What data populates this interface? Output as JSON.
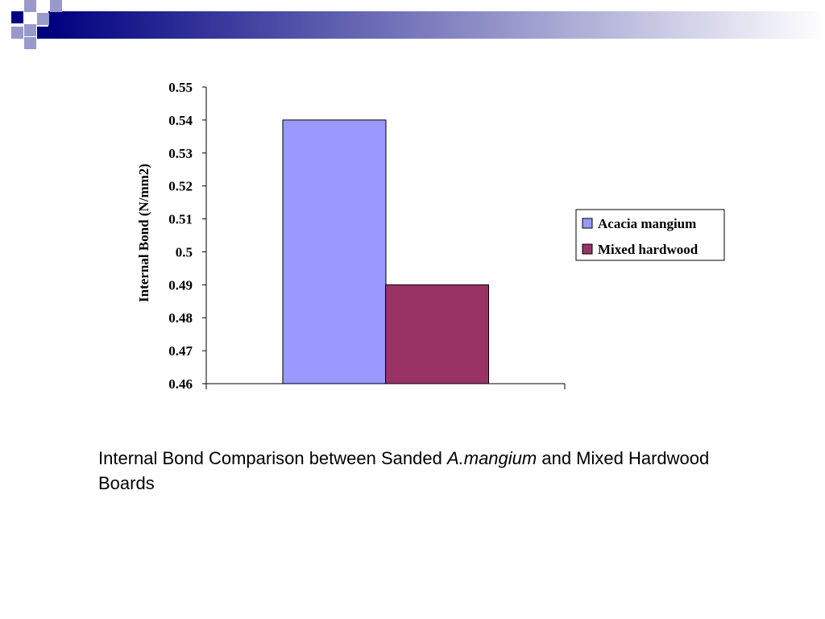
{
  "theme": {
    "header_dark": "#000080",
    "header_light": "#9999cc",
    "header_fade": "#ffffff"
  },
  "chart_data": {
    "type": "bar",
    "title": "",
    "xlabel": "",
    "ylabel": "Internal Bond (N/mm2)",
    "ylim": [
      0.46,
      0.55
    ],
    "yticks": [
      "0.55",
      "0.54",
      "0.53",
      "0.52",
      "0.51",
      "0.5",
      "0.49",
      "0.48",
      "0.47",
      "0.46"
    ],
    "grid": false,
    "legend_position": "right",
    "categories": [
      ""
    ],
    "series": [
      {
        "name": "Acacia mangium",
        "values": [
          0.54
        ],
        "color": "#9999ff"
      },
      {
        "name": "Mixed hardwood",
        "values": [
          0.49
        ],
        "color": "#993366"
      }
    ]
  },
  "caption": {
    "part1": "Internal Bond Comparison between Sanded ",
    "italic": "A.mangium",
    "part2": " and Mixed Hardwood Boards"
  }
}
